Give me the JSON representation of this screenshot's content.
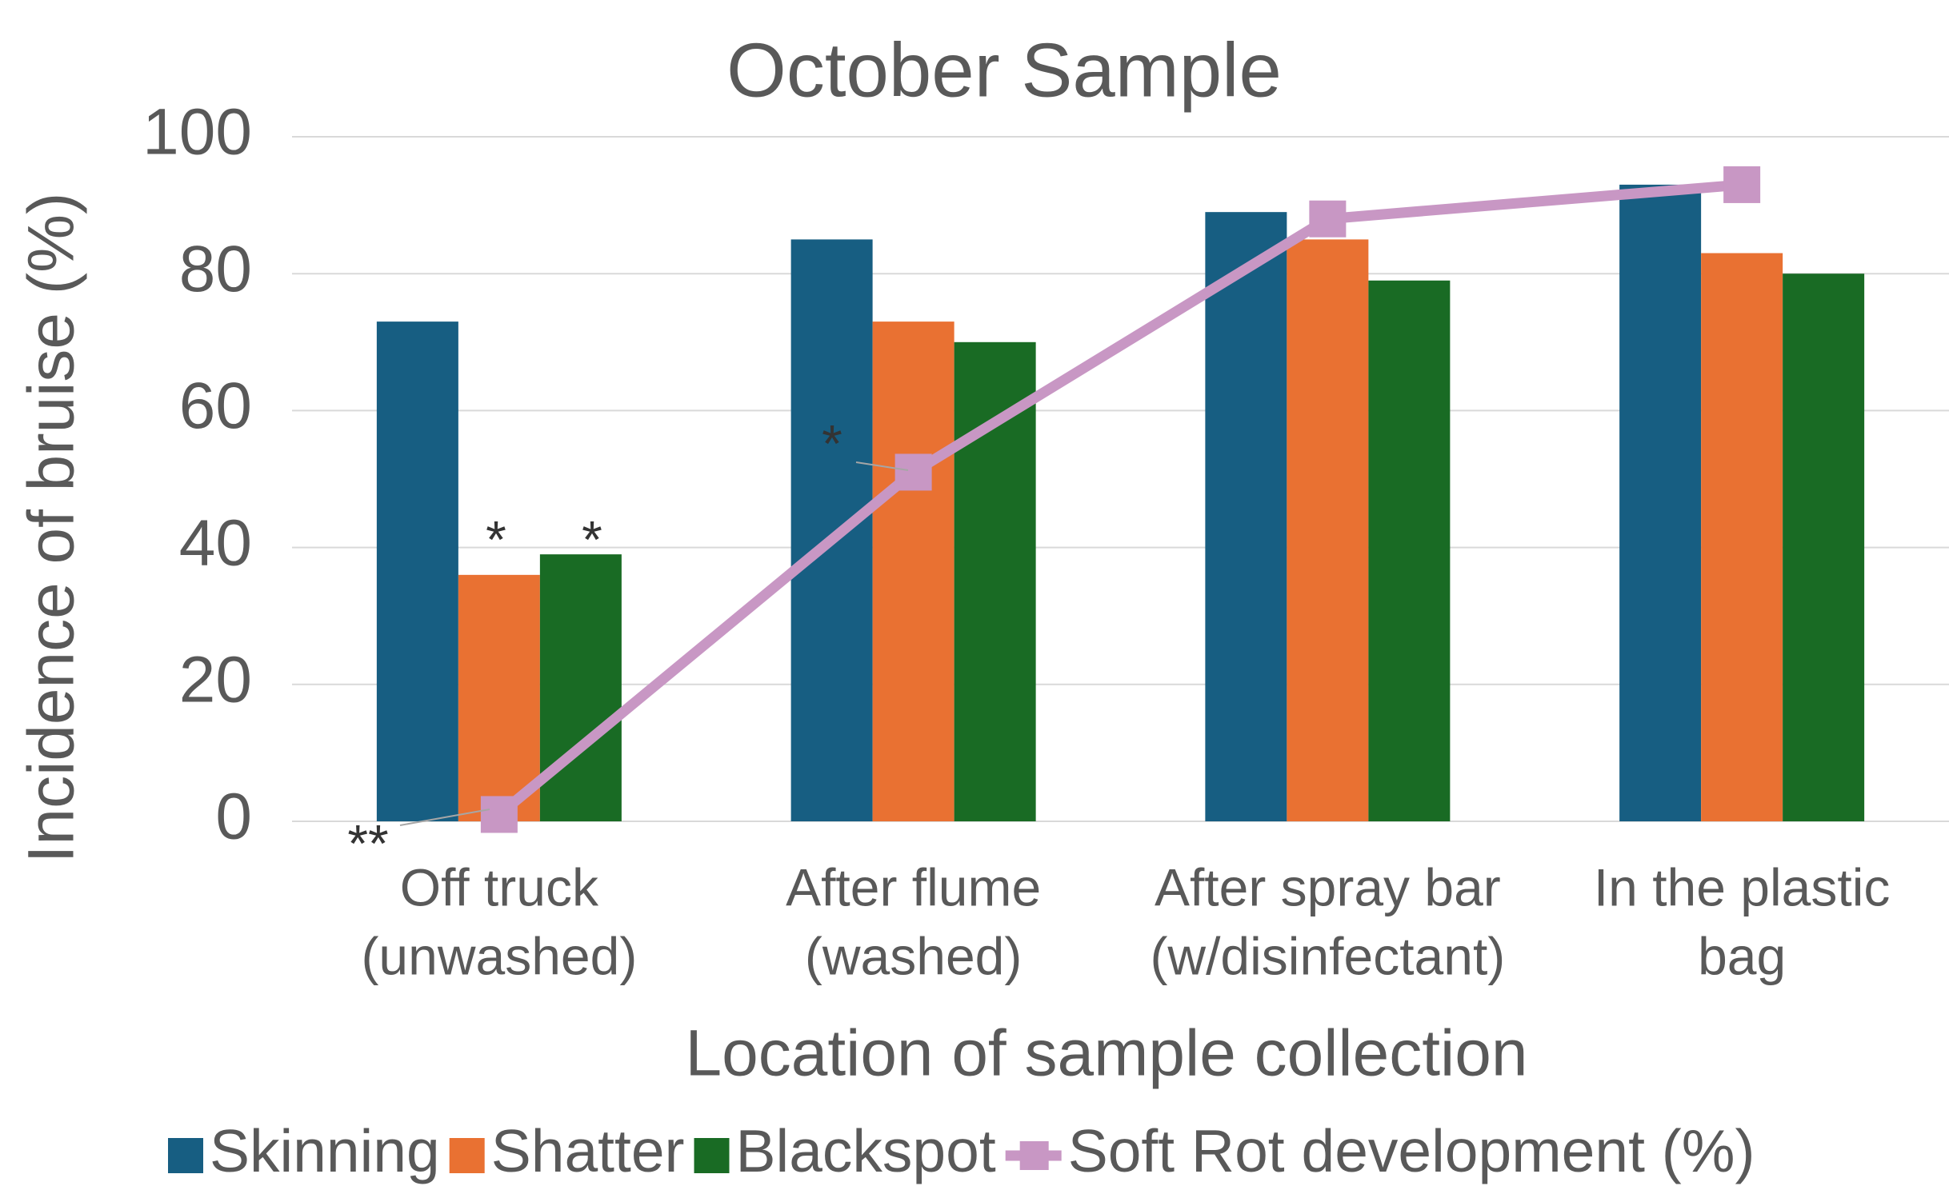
{
  "chart_data": {
    "type": "bar",
    "title": "October Sample",
    "x_label": "Location of sample collection",
    "y_label": "Incidence of bruise (%)",
    "categories": [
      [
        "Off truck",
        "(unwashed)"
      ],
      [
        "After flume",
        "(washed)"
      ],
      [
        "After spray bar",
        "(w/disinfectant)"
      ],
      [
        "In the plastic",
        "bag"
      ]
    ],
    "series": [
      {
        "name": "Skinning",
        "color": "#175e82",
        "values": [
          73,
          85,
          89,
          93
        ]
      },
      {
        "name": "Shatter",
        "color": "#e97132",
        "values": [
          36,
          73,
          85,
          83
        ]
      },
      {
        "name": "Blackspot",
        "color": "#196b24",
        "values": [
          39,
          70,
          79,
          80
        ]
      },
      {
        "name": "Soft Rot development (%)",
        "color": "#c897c4",
        "type": "line",
        "values": [
          1,
          51,
          88,
          93
        ]
      }
    ],
    "annotations": [
      "**",
      "*",
      "*",
      "*"
    ],
    "ylim": [
      0,
      100
    ],
    "yticks": [
      0,
      20,
      40,
      60,
      80,
      100
    ],
    "grid": true,
    "legend": "bottom"
  }
}
